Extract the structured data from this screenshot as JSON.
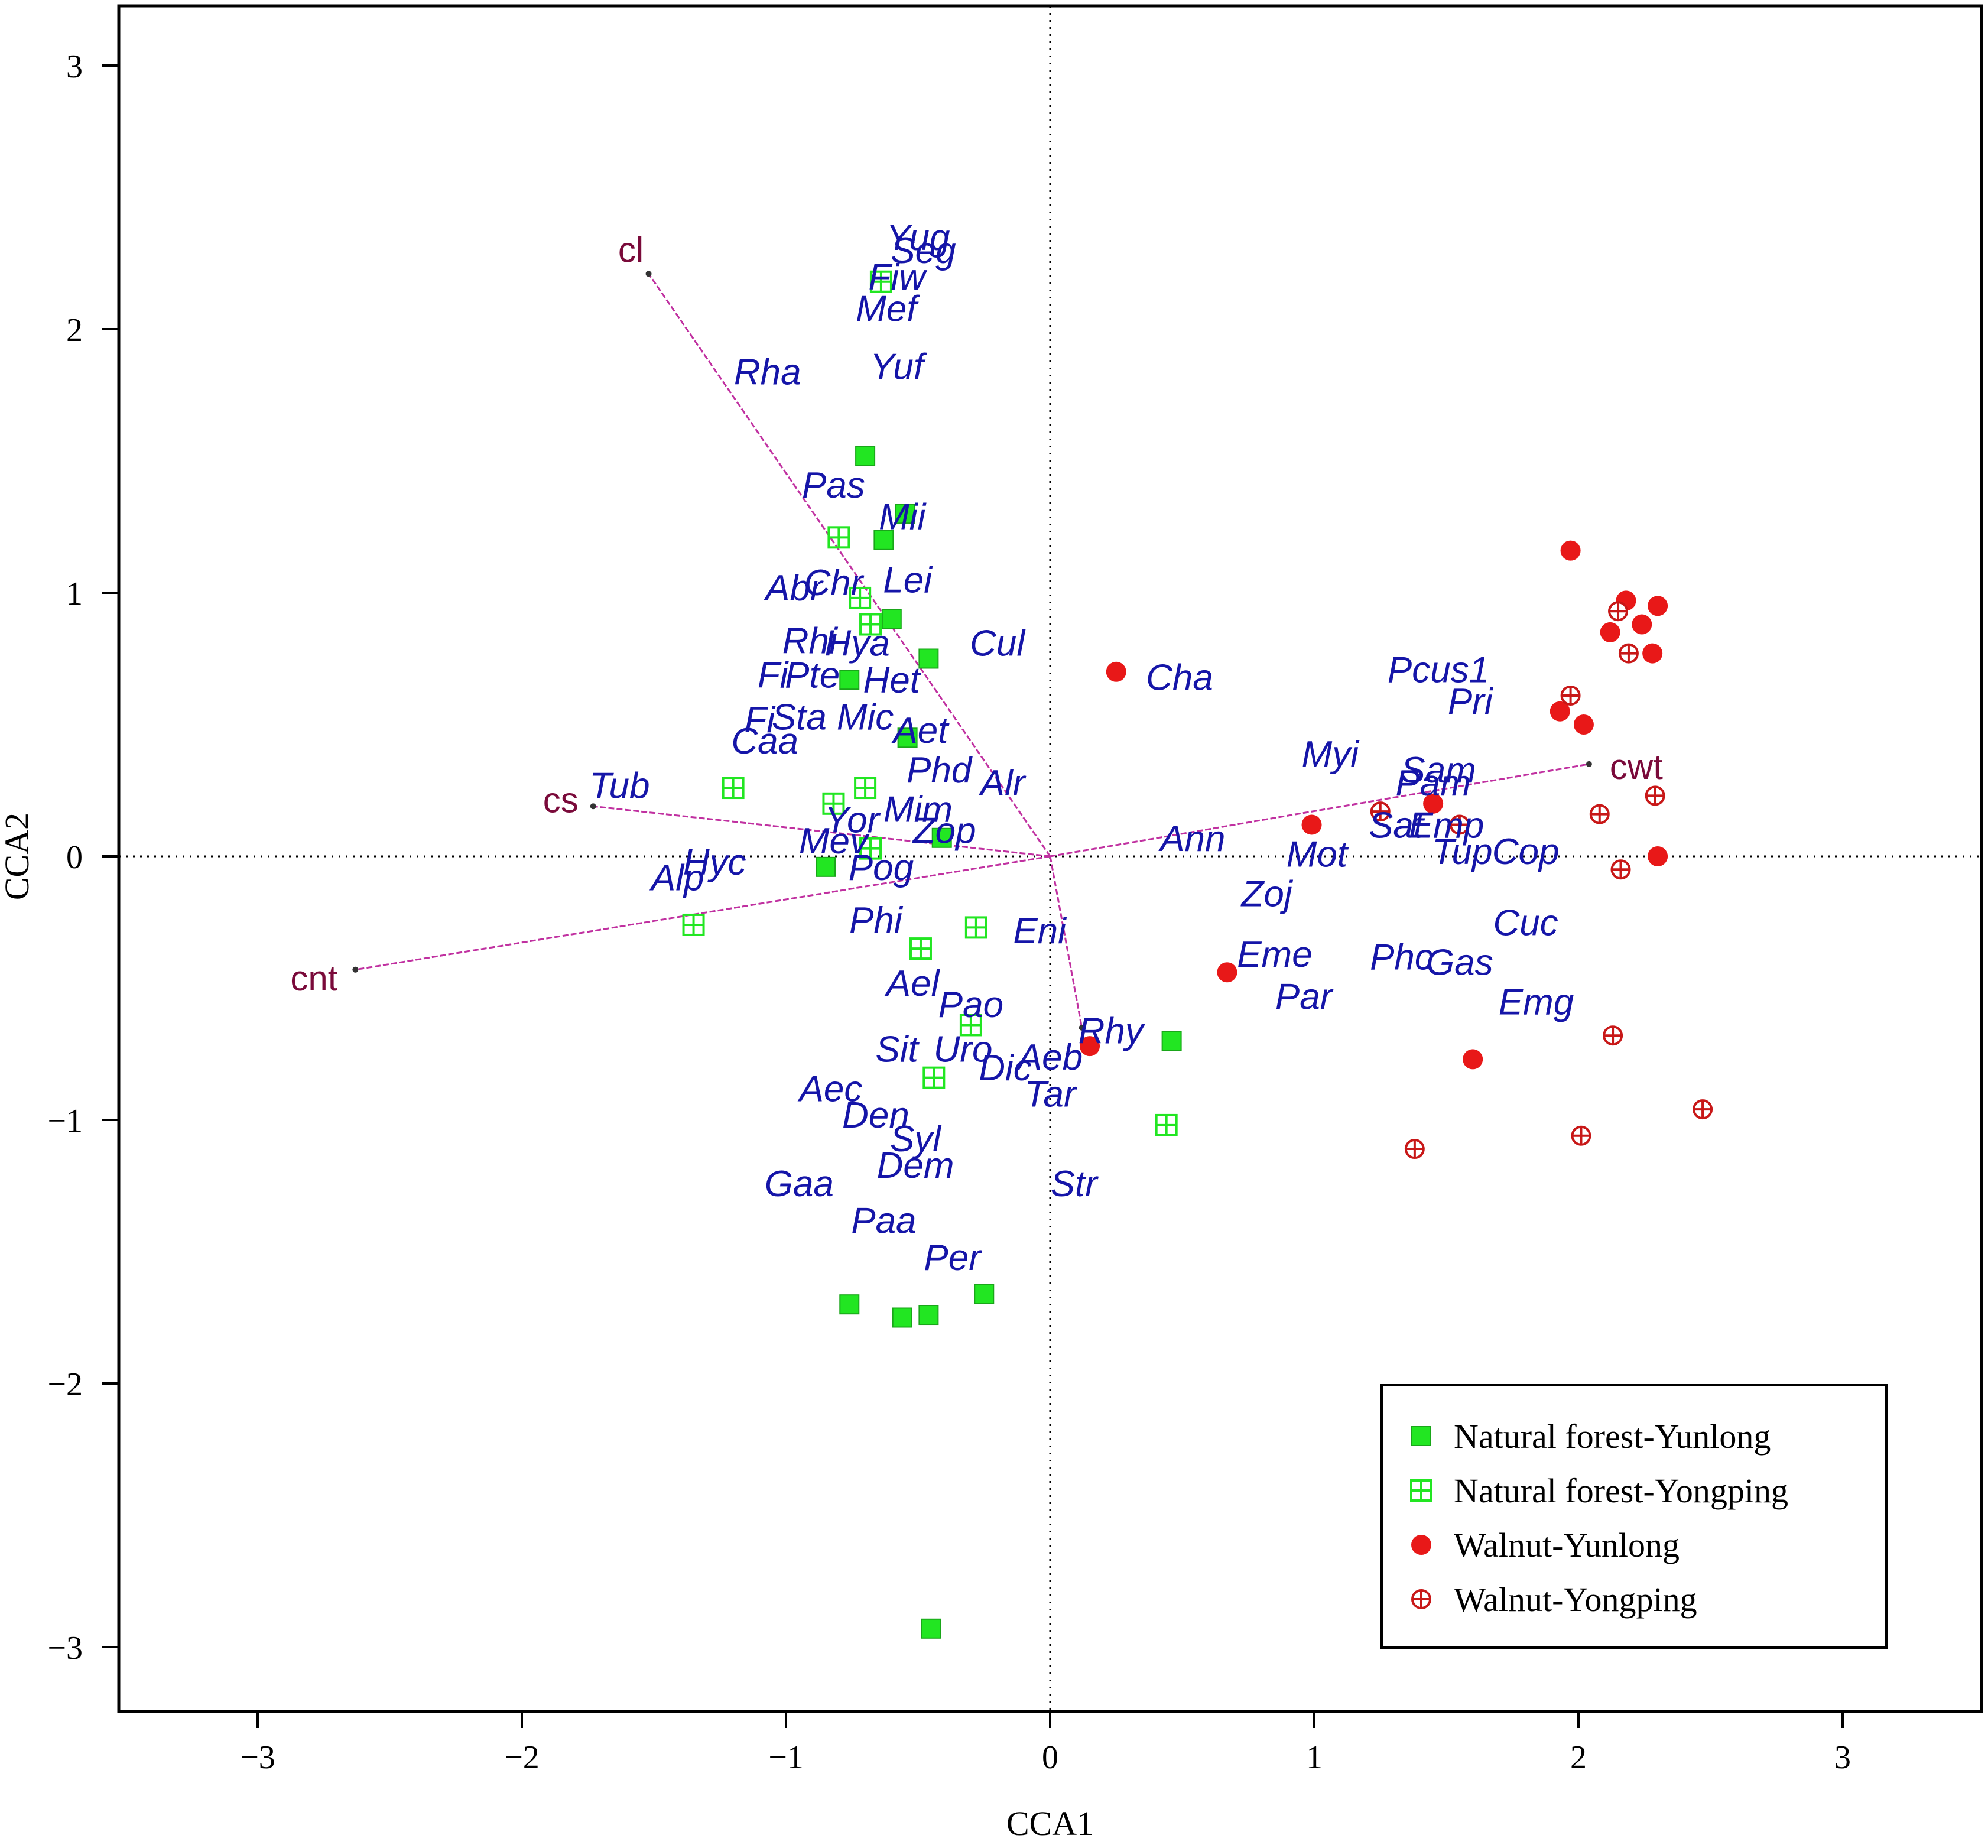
{
  "chart_data": {
    "type": "scatter",
    "xlabel": "CCA1",
    "ylabel": "CCA2",
    "xlim": [
      -3.5,
      3.5
    ],
    "ylim": [
      -3.25,
      3.25
    ],
    "xticks": [
      -3,
      -2,
      -1,
      0,
      1,
      2,
      3
    ],
    "yticks": [
      -3,
      -2,
      -1,
      0,
      1,
      2,
      3
    ],
    "tick_labels": {
      "x": [
        "−3",
        "−2",
        "−1",
        "0",
        "1",
        "2",
        "3"
      ],
      "y": [
        "−3",
        "−2",
        "−1",
        "0",
        "1",
        "2",
        "3"
      ]
    },
    "zero_lines": true,
    "legend_position": "bottom-right",
    "series": [
      {
        "name": "Natural forest-Yunlong",
        "marker": "filled-square",
        "color": "#22e622",
        "points": [
          [
            -0.7,
            1.52
          ],
          [
            -0.55,
            1.3
          ],
          [
            -0.63,
            1.2
          ],
          [
            -0.6,
            0.9
          ],
          [
            -0.46,
            0.75
          ],
          [
            -0.76,
            0.67
          ],
          [
            -0.54,
            0.45
          ],
          [
            -0.41,
            0.07
          ],
          [
            -0.85,
            -0.04
          ],
          [
            0.46,
            -0.7
          ],
          [
            -0.76,
            -1.7
          ],
          [
            -0.56,
            -1.75
          ],
          [
            -0.46,
            -1.74
          ],
          [
            -0.25,
            -1.66
          ],
          [
            -0.45,
            -2.93
          ]
        ]
      },
      {
        "name": "Natural forest-Yongping",
        "marker": "crossed-square",
        "color": "#22e622",
        "points": [
          [
            -0.64,
            2.18
          ],
          [
            -0.8,
            1.21
          ],
          [
            -0.72,
            0.98
          ],
          [
            -0.68,
            0.88
          ],
          [
            -1.2,
            0.26
          ],
          [
            -0.82,
            0.2
          ],
          [
            -0.7,
            0.26
          ],
          [
            -0.68,
            0.03
          ],
          [
            -1.35,
            -0.26
          ],
          [
            -0.49,
            -0.35
          ],
          [
            -0.28,
            -0.27
          ],
          [
            -0.3,
            -0.64
          ],
          [
            -0.44,
            -0.84
          ],
          [
            0.44,
            -1.02
          ]
        ]
      },
      {
        "name": "Walnut-Yunlong",
        "marker": "filled-circle",
        "color": "#e81818",
        "points": [
          [
            1.97,
            1.16
          ],
          [
            2.18,
            0.97
          ],
          [
            2.3,
            0.95
          ],
          [
            2.12,
            0.85
          ],
          [
            2.24,
            0.88
          ],
          [
            2.28,
            0.77
          ],
          [
            0.25,
            0.7
          ],
          [
            1.93,
            0.55
          ],
          [
            2.02,
            0.5
          ],
          [
            1.45,
            0.2
          ],
          [
            0.99,
            0.12
          ],
          [
            2.3,
            0.0
          ],
          [
            0.67,
            -0.44
          ],
          [
            1.6,
            -0.77
          ],
          [
            0.15,
            -0.72
          ]
        ]
      },
      {
        "name": "Walnut-Yongping",
        "marker": "crossed-circle",
        "color": "#c81818",
        "points": [
          [
            2.15,
            0.93
          ],
          [
            2.19,
            0.77
          ],
          [
            1.97,
            0.61
          ],
          [
            2.08,
            0.16
          ],
          [
            2.29,
            0.23
          ],
          [
            1.25,
            0.17
          ],
          [
            1.55,
            0.12
          ],
          [
            2.16,
            -0.05
          ],
          [
            2.13,
            -0.68
          ],
          [
            2.47,
            -0.96
          ],
          [
            2.01,
            -1.06
          ],
          [
            1.38,
            -1.11
          ]
        ]
      }
    ],
    "environment_vectors": [
      {
        "label": "cl",
        "x": -1.52,
        "y": 2.21
      },
      {
        "label": "cs",
        "x": -1.73,
        "y": 0.19
      },
      {
        "label": "cnt",
        "x": -2.63,
        "y": -0.43
      },
      {
        "label": "cwt",
        "x": 2.04,
        "y": 0.35
      },
      {
        "label": "",
        "x": 0.12,
        "y": -0.65
      }
    ],
    "species_labels": [
      {
        "text": "Yug",
        "x": -0.5,
        "y": 2.35
      },
      {
        "text": "Seg",
        "x": -0.48,
        "y": 2.3
      },
      {
        "text": "Fiw",
        "x": -0.58,
        "y": 2.2
      },
      {
        "text": "Mef",
        "x": -0.62,
        "y": 2.08
      },
      {
        "text": "Rha",
        "x": -1.07,
        "y": 1.84
      },
      {
        "text": "Yuf",
        "x": -0.58,
        "y": 1.86
      },
      {
        "text": "Pas",
        "x": -0.82,
        "y": 1.41
      },
      {
        "text": "Mii",
        "x": -0.56,
        "y": 1.29
      },
      {
        "text": "Abr",
        "x": -0.97,
        "y": 1.02
      },
      {
        "text": "Chr",
        "x": -0.82,
        "y": 1.04
      },
      {
        "text": "Lei",
        "x": -0.54,
        "y": 1.05
      },
      {
        "text": "Rhi",
        "x": -0.91,
        "y": 0.82
      },
      {
        "text": "Hya",
        "x": -0.73,
        "y": 0.81
      },
      {
        "text": "Cul",
        "x": -0.2,
        "y": 0.81
      },
      {
        "text": "Fi",
        "x": -1.05,
        "y": 0.69
      },
      {
        "text": "Pte",
        "x": -0.9,
        "y": 0.69
      },
      {
        "text": "Het",
        "x": -0.6,
        "y": 0.67
      },
      {
        "text": "Cha",
        "x": 0.49,
        "y": 0.68
      },
      {
        "text": "Pcus1",
        "x": 1.47,
        "y": 0.71
      },
      {
        "text": "Pri",
        "x": 1.59,
        "y": 0.59
      },
      {
        "text": "Fi",
        "x": -1.1,
        "y": 0.52
      },
      {
        "text": "Sta",
        "x": -0.95,
        "y": 0.53
      },
      {
        "text": "Mic",
        "x": -0.7,
        "y": 0.53
      },
      {
        "text": "Aet",
        "x": -0.49,
        "y": 0.48
      },
      {
        "text": "Caa",
        "x": -1.08,
        "y": 0.44
      },
      {
        "text": "Myi",
        "x": 1.06,
        "y": 0.39
      },
      {
        "text": "Phd",
        "x": -0.42,
        "y": 0.33
      },
      {
        "text": "Alr",
        "x": -0.18,
        "y": 0.28
      },
      {
        "text": "Sam",
        "x": 1.47,
        "y": 0.33
      },
      {
        "text": "Pam",
        "x": 1.45,
        "y": 0.28
      },
      {
        "text": "Tub",
        "x": -1.63,
        "y": 0.27
      },
      {
        "text": "Yor",
        "x": -0.75,
        "y": 0.14
      },
      {
        "text": "Mim",
        "x": -0.5,
        "y": 0.18
      },
      {
        "text": "Zop",
        "x": -0.4,
        "y": 0.1
      },
      {
        "text": "Mev",
        "x": -0.82,
        "y": 0.06
      },
      {
        "text": "Ann",
        "x": 0.54,
        "y": 0.07
      },
      {
        "text": "Sat",
        "x": 1.31,
        "y": 0.12
      },
      {
        "text": "Emp",
        "x": 1.5,
        "y": 0.12
      },
      {
        "text": "Mot",
        "x": 1.01,
        "y": 0.01
      },
      {
        "text": "Tup",
        "x": 1.56,
        "y": 0.02
      },
      {
        "text": "Cop",
        "x": 1.8,
        "y": 0.02
      },
      {
        "text": "Hyc",
        "x": -1.27,
        "y": -0.02
      },
      {
        "text": "Alp",
        "x": -1.41,
        "y": -0.08
      },
      {
        "text": "Pog",
        "x": -0.64,
        "y": -0.04
      },
      {
        "text": "Zoj",
        "x": 0.82,
        "y": -0.14
      },
      {
        "text": "Cuc",
        "x": 1.8,
        "y": -0.25
      },
      {
        "text": "Phi",
        "x": -0.66,
        "y": -0.24
      },
      {
        "text": "Eni",
        "x": -0.04,
        "y": -0.28
      },
      {
        "text": "Eme",
        "x": 0.85,
        "y": -0.37
      },
      {
        "text": "Phc",
        "x": 1.33,
        "y": -0.38
      },
      {
        "text": "Gas",
        "x": 1.55,
        "y": -0.4
      },
      {
        "text": "Ael",
        "x": -0.52,
        "y": -0.48
      },
      {
        "text": "Par",
        "x": 0.96,
        "y": -0.53
      },
      {
        "text": "Emg",
        "x": 1.84,
        "y": -0.55
      },
      {
        "text": "Pao",
        "x": -0.3,
        "y": -0.56
      },
      {
        "text": "Rhy",
        "x": 0.23,
        "y": -0.66
      },
      {
        "text": "Sit",
        "x": -0.58,
        "y": -0.73
      },
      {
        "text": "Uro",
        "x": -0.33,
        "y": -0.73
      },
      {
        "text": "Aeb",
        "x": 0.0,
        "y": -0.76
      },
      {
        "text": "Dic",
        "x": -0.17,
        "y": -0.8
      },
      {
        "text": "Tar",
        "x": 0.0,
        "y": -0.9
      },
      {
        "text": "Aec",
        "x": -0.83,
        "y": -0.88
      },
      {
        "text": "Den",
        "x": -0.66,
        "y": -0.98
      },
      {
        "text": "Syl",
        "x": -0.51,
        "y": -1.07
      },
      {
        "text": "Dem",
        "x": -0.51,
        "y": -1.17
      },
      {
        "text": "Gaa",
        "x": -0.95,
        "y": -1.24
      },
      {
        "text": "Str",
        "x": 0.09,
        "y": -1.24
      },
      {
        "text": "Paa",
        "x": -0.63,
        "y": -1.38
      },
      {
        "text": "Per",
        "x": -0.37,
        "y": -1.52
      }
    ]
  }
}
